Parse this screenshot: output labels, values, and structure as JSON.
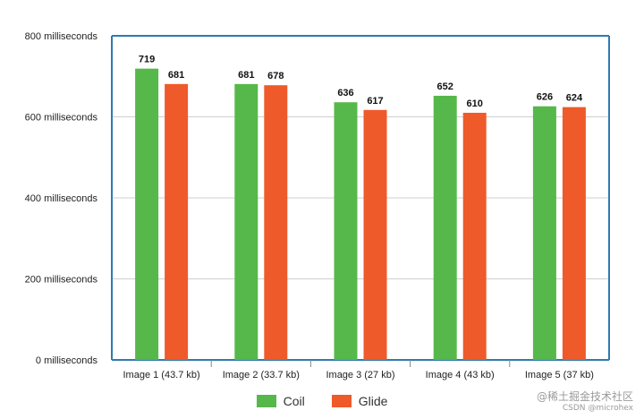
{
  "chart_data": {
    "type": "bar",
    "title": "",
    "xlabel": "",
    "ylabel": "",
    "categories": [
      "Image 1 (43.7 kb)",
      "Image 2 (33.7 kb)",
      "Image 3 (27 kb)",
      "Image 4 (43 kb)",
      "Image 5 (37 kb)"
    ],
    "series": [
      {
        "name": "Coil",
        "color": "#56b84a",
        "values": [
          719,
          681,
          636,
          652,
          626
        ]
      },
      {
        "name": "Glide",
        "color": "#ee5a2a",
        "values": [
          681,
          678,
          617,
          610,
          624
        ]
      }
    ],
    "ylim": [
      0,
      800
    ],
    "yticks": [
      {
        "value": 0,
        "label": "0 milliseconds"
      },
      {
        "value": 200,
        "label": "200 milliseconds"
      },
      {
        "value": 400,
        "label": "400 milliseconds"
      },
      {
        "value": 600,
        "label": "600 milliseconds"
      },
      {
        "value": 800,
        "label": "800 milliseconds"
      }
    ],
    "grid": true,
    "legend_position": "bottom-center",
    "frame_color": "#2e7bb0"
  },
  "watermark": {
    "line1": "@稀土掘金技术社区",
    "line2": "CSDN @microhex"
  }
}
